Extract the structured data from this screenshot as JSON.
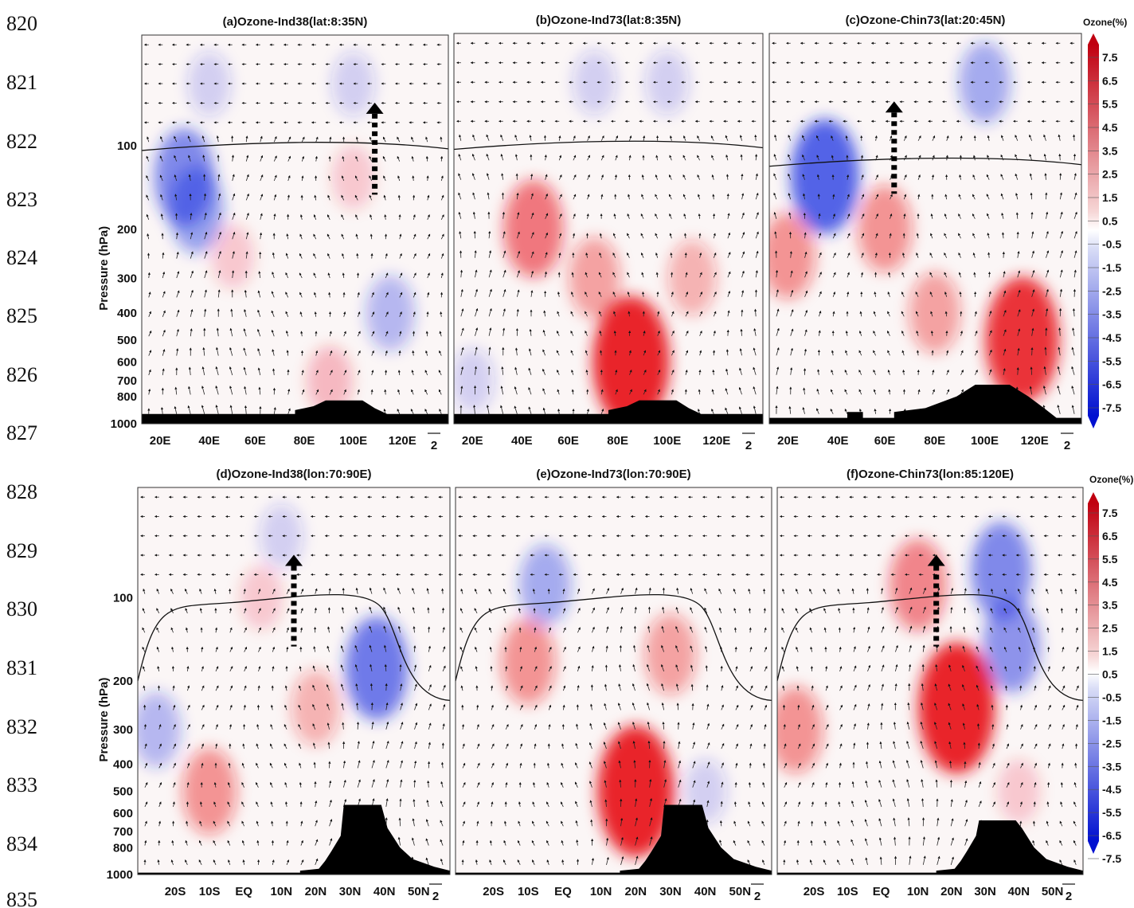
{
  "line_numbers": [
    "820",
    "821",
    "822",
    "823",
    "824",
    "825",
    "826",
    "827",
    "828",
    "829",
    "830",
    "831",
    "832",
    "833",
    "834",
    "835"
  ],
  "colorbar": {
    "title": "Ozone(%)",
    "labels": [
      "7.5",
      "6.5",
      "5.5",
      "4.5",
      "3.5",
      "2.5",
      "1.5",
      "0.5",
      "-0.5",
      "-1.5",
      "-2.5",
      "-3.5",
      "-4.5",
      "-5.5",
      "-6.5",
      "-7.5"
    ]
  },
  "vector_scale_label": "2",
  "colors": {
    "positive": "#e8141e",
    "negative": "#1a2fe0",
    "terrain": "#000000",
    "tropopause": "#111111"
  },
  "chart_data": [
    {
      "type": "heatmap",
      "title": "(a)Ozone-Ind38(lat:8:35N)",
      "ylabel": "Pressure (hPa)",
      "y_ticks": [
        "100",
        "200",
        "300",
        "400",
        "500",
        "600",
        "700",
        "800",
        "1000"
      ],
      "x_ticks": [
        "20E",
        "40E",
        "60E",
        "80E",
        "100E",
        "120E"
      ],
      "y_scale": "log",
      "overlays": [
        "wind vectors",
        "tropopause line",
        "terrain",
        "dashed arrow"
      ],
      "blobs": [
        {
          "x": "30E",
          "p": 130,
          "v": -4.5
        },
        {
          "x": "35E",
          "p": 170,
          "v": -3.5
        },
        {
          "x": "50E",
          "p": 250,
          "v": 1.5
        },
        {
          "x": "90E",
          "p": 700,
          "v": 2
        },
        {
          "x": "100E",
          "p": 130,
          "v": 1.5
        },
        {
          "x": "115E",
          "p": 400,
          "v": -2.5
        },
        {
          "x": "40E",
          "p": 60,
          "v": -1.5
        },
        {
          "x": "100E",
          "p": 60,
          "v": -1.5
        }
      ]
    },
    {
      "type": "heatmap",
      "title": "(b)Ozone-Ind73(lat:8:35N)",
      "y_ticks": [],
      "x_ticks": [
        "20E",
        "40E",
        "60E",
        "80E",
        "100E",
        "120E"
      ],
      "y_scale": "log",
      "overlays": [
        "wind vectors",
        "tropopause line",
        "terrain"
      ],
      "blobs": [
        {
          "x": "45E",
          "p": 200,
          "v": 4.5
        },
        {
          "x": "85E",
          "p": 600,
          "v": 7.5
        },
        {
          "x": "70E",
          "p": 300,
          "v": 3
        },
        {
          "x": "110E",
          "p": 300,
          "v": 2.5
        },
        {
          "x": "20E",
          "p": 700,
          "v": -1.5
        },
        {
          "x": "70E",
          "p": 60,
          "v": -1.5
        },
        {
          "x": "100E",
          "p": 60,
          "v": -1.5
        }
      ]
    },
    {
      "type": "heatmap",
      "title": "(c)Ozone-Chin73(lat:20:45N)",
      "y_ticks": [],
      "x_ticks": [
        "20E",
        "40E",
        "60E",
        "80E",
        "100E",
        "120E"
      ],
      "y_scale": "log",
      "overlays": [
        "wind vectors",
        "tropopause line",
        "terrain",
        "dashed arrow"
      ],
      "blobs": [
        {
          "x": "35E",
          "p": 130,
          "v": -6
        },
        {
          "x": "100E",
          "p": 60,
          "v": -3
        },
        {
          "x": "20E",
          "p": 250,
          "v": 3.5
        },
        {
          "x": "60E",
          "p": 200,
          "v": 3.5
        },
        {
          "x": "115E",
          "p": 500,
          "v": 7
        },
        {
          "x": "80E",
          "p": 400,
          "v": 3
        }
      ]
    },
    {
      "type": "heatmap",
      "title": "(d)Ozone-Ind38(lon:70:90E)",
      "ylabel": "Pressure (hPa)",
      "y_ticks": [
        "100",
        "200",
        "300",
        "400",
        "500",
        "600",
        "700",
        "800",
        "1000"
      ],
      "x_ticks": [
        "20S",
        "10S",
        "EQ",
        "10N",
        "20N",
        "30N",
        "40N",
        "50N"
      ],
      "y_scale": "log",
      "overlays": [
        "wind vectors",
        "tropopause line",
        "terrain",
        "dashed arrow"
      ],
      "blobs": [
        {
          "x": "10S",
          "p": 500,
          "v": 3.5
        },
        {
          "x": "20N",
          "p": 250,
          "v": 2.5
        },
        {
          "x": "5N",
          "p": 100,
          "v": 1.5
        },
        {
          "x": "38N",
          "p": 180,
          "v": -5
        },
        {
          "x": "25S",
          "p": 300,
          "v": -2.5
        },
        {
          "x": "10N",
          "p": 60,
          "v": -1.5
        }
      ]
    },
    {
      "type": "heatmap",
      "title": "(e)Ozone-Ind73(lon:70:90E)",
      "y_ticks": [],
      "x_ticks": [
        "20S",
        "10S",
        "EQ",
        "10N",
        "20N",
        "30N",
        "40N",
        "50N"
      ],
      "y_scale": "log",
      "overlays": [
        "wind vectors",
        "tropopause line",
        "terrain"
      ],
      "blobs": [
        {
          "x": "20N",
          "p": 500,
          "v": 7.5
        },
        {
          "x": "10S",
          "p": 170,
          "v": 3.5
        },
        {
          "x": "30N",
          "p": 160,
          "v": 3
        },
        {
          "x": "5S",
          "p": 90,
          "v": -3
        },
        {
          "x": "40N",
          "p": 500,
          "v": -1.5
        }
      ]
    },
    {
      "type": "heatmap",
      "title": "(f)Ozone-Chin73(lon:85:120E)",
      "y_ticks": [],
      "x_ticks": [
        "20S",
        "10S",
        "EQ",
        "10N",
        "20N",
        "30N",
        "40N",
        "50N"
      ],
      "y_scale": "log",
      "overlays": [
        "wind vectors",
        "tropopause line",
        "terrain",
        "dashed arrow"
      ],
      "blobs": [
        {
          "x": "22N",
          "p": 250,
          "v": 7.5
        },
        {
          "x": "25S",
          "p": 300,
          "v": 3.5
        },
        {
          "x": "10N",
          "p": 90,
          "v": 4
        },
        {
          "x": "35N",
          "p": 80,
          "v": -4.5
        },
        {
          "x": "38N",
          "p": 150,
          "v": -4
        },
        {
          "x": "40N",
          "p": 500,
          "v": 1.5
        }
      ]
    }
  ]
}
